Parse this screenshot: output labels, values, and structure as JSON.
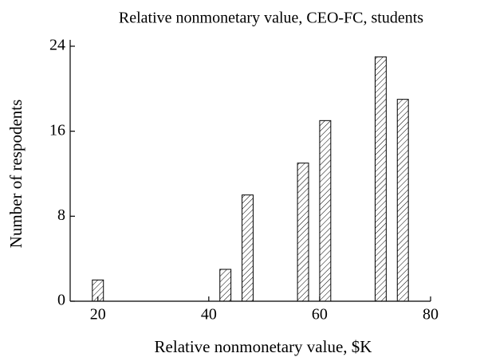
{
  "chart_data": {
    "type": "bar",
    "title": "Relative nonmonetary value, CEO-FC, students",
    "x_label": "Relative nonmonetary value, $K",
    "y_label": "Number of respodents",
    "x": [
      20,
      43,
      47,
      57,
      61,
      71,
      75
    ],
    "values": [
      2,
      3,
      10,
      13,
      17,
      23,
      19
    ],
    "bar_width": 2,
    "color": "#000000",
    "hatch": true,
    "xlim": [
      15,
      80
    ],
    "xticks": [
      20,
      40,
      60,
      80
    ],
    "ylim": [
      0,
      24
    ],
    "yticks": [
      0,
      8,
      16,
      24
    ],
    "grid": false
  }
}
